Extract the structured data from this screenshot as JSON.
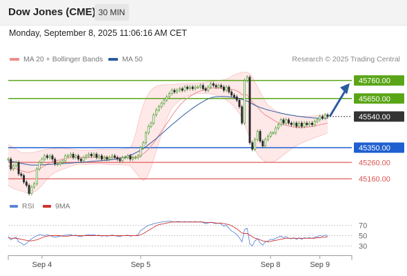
{
  "header": {
    "title": "Dow Jones (CME)",
    "timeframe": "30 MIN"
  },
  "datetime": "Monday, September 8, 2025 11:06:16 AM CET",
  "legend": {
    "items": [
      {
        "label": "MA 20 + Bollinger Bands",
        "color": "#f08c8c"
      },
      {
        "label": "MA 50",
        "color": "#2c5aa0"
      }
    ],
    "credit": "Research © 2025 Trading Central"
  },
  "chart_data": {
    "type": "line",
    "ylim": [
      45030,
      45830
    ],
    "x_ticks": [
      "Sep 4",
      "Sep 5",
      "Sep 8",
      "Sep 9"
    ],
    "levels": [
      {
        "label": "45760.00",
        "value": 45760,
        "color": "#5aa517",
        "style": "solid"
      },
      {
        "label": "45650.00",
        "value": 45650,
        "color": "#5aa517",
        "style": "solid"
      },
      {
        "label": "45540.00",
        "value": 45540,
        "color": "#333333",
        "style": "dotted"
      },
      {
        "label": "45350.00",
        "value": 45350,
        "color": "#1f5fd0",
        "style": "solid"
      },
      {
        "label": "45260.00",
        "value": 45260,
        "color": "#e57373",
        "style": "solid"
      },
      {
        "label": "45160.00",
        "value": 45160,
        "color": "#e57373",
        "style": "solid"
      }
    ],
    "price": [
      45280,
      45220,
      45240,
      45260,
      45190,
      45180,
      45140,
      45120,
      45070,
      45110,
      45130,
      45220,
      45260,
      45280,
      45300,
      45290,
      45300,
      45280,
      45250,
      45250,
      45260,
      45270,
      45300,
      45300,
      45310,
      45290,
      45300,
      45280,
      45270,
      45290,
      45300,
      45310,
      45300,
      45310,
      45290,
      45300,
      45280,
      45290,
      45280,
      45290,
      45300,
      45290,
      45280,
      45270,
      45290,
      45290,
      45300,
      45280,
      45290,
      45290,
      45300,
      45350,
      45380,
      45440,
      45480,
      45500,
      45550,
      45580,
      45600,
      45620,
      45640,
      45660,
      45680,
      45700,
      45690,
      45700,
      45710,
      45700,
      45720,
      45710,
      45720,
      45710,
      45720,
      45720,
      45730,
      45710,
      45700,
      45720,
      45740,
      45730,
      45720,
      45730,
      45720,
      45700,
      45720,
      45690,
      45670,
      45660,
      45640,
      45600,
      45500,
      45760,
      45780,
      45380,
      45340,
      45400,
      45450,
      45390,
      45360,
      45400,
      45420,
      45440,
      45440,
      45470,
      45490,
      45520,
      45500,
      45520,
      45500,
      45490,
      45500,
      45480,
      45500,
      45480,
      45500,
      45490,
      45500,
      45490,
      45510,
      45520,
      45540,
      45530,
      45550,
      45540
    ],
    "ma20": [
      45240,
      45230,
      45230,
      45220,
      45215,
      45210,
      45205,
      45200,
      45200,
      45205,
      45210,
      45215,
      45222,
      45230,
      45240,
      45250,
      45258,
      45265,
      45270,
      45272,
      45276,
      45280,
      45283,
      45286,
      45290,
      45291,
      45292,
      45292,
      45291,
      45290,
      45289,
      45290,
      45291,
      45292,
      45293,
      45294,
      45294,
      45294,
      45292,
      45290,
      45290,
      45290,
      45291,
      45291,
      45290,
      45290,
      45290,
      45291,
      45292,
      45293,
      45295,
      45302,
      45312,
      45325,
      45340,
      45360,
      45380,
      45402,
      45426,
      45450,
      45472,
      45496,
      45520,
      45545,
      45567,
      45588,
      45608,
      45624,
      45640,
      45652,
      45663,
      45673,
      45682,
      45690,
      45697,
      45703,
      45708,
      45712,
      45713,
      45713,
      45714,
      45714,
      45714,
      45713,
      45712,
      45710,
      45706,
      45702,
      45697,
      45688,
      45673,
      45672,
      45672,
      45650,
      45630,
      45612,
      45598,
      45578,
      45562,
      45549,
      45540,
      45530,
      45520,
      45510,
      45502,
      45496,
      45490,
      45486,
      45482,
      45479,
      45476,
      45474,
      45473,
      45473,
      45474,
      45475,
      45477,
      45479,
      45482,
      45486,
      45490,
      45493,
      45496,
      45500
    ],
    "ma50": [
      45270,
      45267,
      45264,
      45261,
      45258,
      45254,
      45251,
      45248,
      45245,
      45244,
      45244,
      45244,
      45244,
      45245,
      45246,
      45247,
      45248,
      45249,
      45250,
      45251,
      45252,
      45253,
      45254,
      45255,
      45256,
      45257,
      45259,
      45260,
      45261,
      45262,
      45263,
      45264,
      45266,
      45267,
      45268,
      45270,
      45271,
      45272,
      45273,
      45275,
      45277,
      45279,
      45282,
      45285,
      45289,
      45293,
      45298,
      45304,
      45310,
      45318,
      45326,
      45335,
      45345,
      45356,
      45368,
      45380,
      45393,
      45406,
      45420,
      45434,
      45448,
      45462,
      45476,
      45490,
      45503,
      45516,
      45529,
      45542,
      45555,
      45567,
      45579,
      45591,
      45602,
      45612,
      45622,
      45631,
      45640,
      45648,
      45654,
      45658,
      45660,
      45661,
      45662,
      45662,
      45661,
      45660,
      45658,
      45656,
      45653,
      45649,
      45644,
      45640,
      45634,
      45626,
      45617,
      45609,
      45602,
      45595,
      45590,
      45585,
      45580,
      45576,
      45572,
      45568,
      45564,
      45560,
      45557,
      45554,
      45551,
      45548,
      45546,
      45543,
      45541,
      45539,
      45537,
      45535,
      45534,
      45532,
      45531,
      45530,
      45530,
      45530,
      45530,
      45530
    ],
    "bb_upper": [
      45370,
      45360,
      45350,
      45340,
      45330,
      45320,
      45320,
      45320,
      45318,
      45320,
      45322,
      45326,
      45330,
      45334,
      45338,
      45340,
      45342,
      45344,
      45345,
      45346,
      45346,
      45346,
      45345,
      45344,
      45342,
      45340,
      45338,
      45337,
      45336,
      45336,
      45335,
      45335,
      45336,
      45337,
      45338,
      45339,
      45340,
      45340,
      45339,
      45338,
      45338,
      45338,
      45339,
      45340,
      45341,
      45342,
      45344,
      45350,
      45380,
      45430,
      45500,
      45560,
      45610,
      45650,
      45680,
      45700,
      45715,
      45725,
      45730,
      45732,
      45733,
      45734,
      45735,
      45736,
      45737,
      45738,
      45739,
      45740,
      45741,
      45742,
      45742,
      45742,
      45743,
      45744,
      45746,
      45748,
      45750,
      45752,
      45754,
      45756,
      45758,
      45760,
      45762,
      45764,
      45768,
      45775,
      45785,
      45795,
      45800,
      45805,
      45810,
      45810,
      45810,
      45800,
      45780,
      45750,
      45720,
      45690,
      45660,
      45630,
      45610,
      45595,
      45585,
      45575,
      45568,
      45562,
      45557,
      45553,
      45550,
      45547,
      45545,
      45543,
      45542,
      45541,
      45541,
      45541,
      45542,
      45543,
      45544,
      45546,
      45548,
      45550,
      45552,
      45554
    ],
    "bb_lower": [
      45120,
      45110,
      45100,
      45095,
      45090,
      45085,
      45080,
      45075,
      45072,
      45075,
      45080,
      45090,
      45105,
      45120,
      45140,
      45160,
      45175,
      45188,
      45198,
      45205,
      45212,
      45218,
      45224,
      45230,
      45236,
      45241,
      45245,
      45248,
      45249,
      45248,
      45247,
      45248,
      45249,
      45250,
      45251,
      45252,
      45251,
      45250,
      45248,
      45246,
      45245,
      45245,
      45246,
      45246,
      45245,
      45244,
      45243,
      45240,
      45220,
      45200,
      45180,
      45160,
      45150,
      45160,
      45190,
      45230,
      45280,
      45330,
      45380,
      45430,
      45480,
      45520,
      45560,
      45590,
      45610,
      45625,
      45638,
      45650,
      45658,
      45665,
      45670,
      45675,
      45678,
      45680,
      45680,
      45680,
      45680,
      45680,
      45678,
      45675,
      45670,
      45665,
      45660,
      45650,
      45640,
      45630,
      45615,
      45600,
      45580,
      45560,
      45530,
      45500,
      45450,
      45410,
      45370,
      45340,
      45310,
      45290,
      45275,
      45265,
      45262,
      45262,
      45265,
      45270,
      45280,
      45292,
      45305,
      45318,
      45330,
      45342,
      45352,
      45362,
      45370,
      45378,
      45385,
      45392,
      45398,
      45404,
      45410,
      45416,
      45422,
      45428,
      45434,
      45440
    ],
    "rsi": {
      "ticks": [
        70,
        50,
        30
      ],
      "ylim": [
        15,
        85
      ],
      "values": [
        48,
        42,
        45,
        47,
        38,
        36,
        32,
        35,
        40,
        44,
        47,
        50,
        52,
        51,
        50,
        52,
        50,
        48,
        47,
        48,
        49,
        50,
        51,
        51,
        52,
        50,
        51,
        49,
        48,
        50,
        51,
        52,
        51,
        52,
        50,
        51,
        49,
        50,
        49,
        50,
        51,
        50,
        49,
        48,
        50,
        50,
        51,
        49,
        50,
        50,
        52,
        60,
        63,
        67,
        70,
        71,
        73,
        74,
        75,
        76,
        77,
        77,
        78,
        77,
        76,
        77,
        77,
        76,
        77,
        76,
        77,
        76,
        77,
        76,
        77,
        75,
        73,
        74,
        76,
        74,
        73,
        74,
        72,
        68,
        70,
        64,
        59,
        56,
        52,
        46,
        38,
        62,
        64,
        34,
        30,
        40,
        44,
        36,
        32,
        38,
        40,
        43,
        42,
        45,
        47,
        49,
        46,
        48,
        45,
        44,
        46,
        43,
        46,
        43,
        46,
        45,
        46,
        45,
        47,
        48,
        50,
        49,
        51,
        50
      ],
      "ma": [
        46,
        45,
        45,
        45,
        44,
        43,
        42,
        41,
        40,
        40,
        41,
        42,
        44,
        46,
        48,
        49,
        50,
        50,
        50,
        50,
        50,
        49,
        49,
        49,
        50,
        50,
        50,
        50,
        50,
        50,
        50,
        50,
        50,
        50,
        50,
        50,
        50,
        50,
        50,
        50,
        50,
        50,
        50,
        50,
        50,
        50,
        50,
        50,
        50,
        50,
        50,
        52,
        54,
        57,
        60,
        63,
        66,
        69,
        71,
        72,
        73,
        74,
        75,
        76,
        76,
        76,
        76,
        76,
        76,
        76,
        76,
        76,
        76,
        76,
        76,
        76,
        75,
        75,
        75,
        75,
        74,
        74,
        74,
        73,
        72,
        71,
        69,
        66,
        63,
        59,
        55,
        54,
        54,
        51,
        48,
        45,
        44,
        42,
        40,
        39,
        38,
        39,
        40,
        41,
        42,
        43,
        44,
        45,
        45,
        45,
        45,
        45,
        45,
        45,
        45,
        45,
        45,
        45,
        45,
        46,
        46,
        47,
        47,
        48
      ]
    }
  },
  "rsi_legend": [
    {
      "label": "RSI",
      "color": "#5b86d6"
    },
    {
      "label": "9MA",
      "color": "#d0312d"
    }
  ]
}
